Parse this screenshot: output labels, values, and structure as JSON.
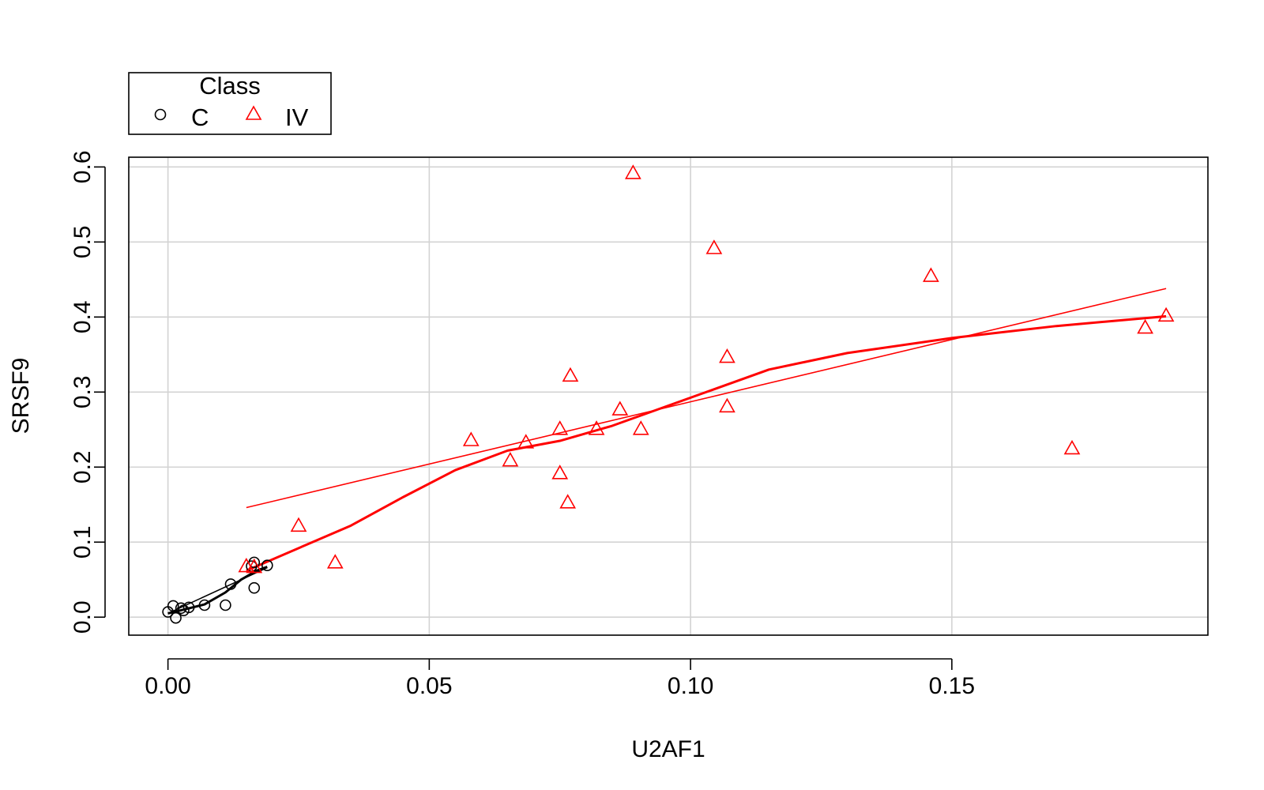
{
  "chart_data": {
    "type": "scatter",
    "title": "",
    "xlabel": "U2AF1",
    "ylabel": "SRSF9",
    "xlim": [
      -0.0075,
      0.199
    ],
    "ylim": [
      -0.024,
      0.613
    ],
    "xticks": [
      0.0,
      0.05,
      0.1,
      0.15
    ],
    "xtick_labels": [
      "0.00",
      "0.05",
      "0.10",
      "0.15"
    ],
    "yticks": [
      0.0,
      0.1,
      0.2,
      0.3,
      0.4,
      0.5,
      0.6
    ],
    "ytick_labels": [
      "0.0",
      "0.1",
      "0.2",
      "0.3",
      "0.4",
      "0.5",
      "0.6"
    ],
    "grid": true,
    "legend": {
      "title": "Class",
      "position": "top-left, above plot",
      "entries": [
        {
          "label": "C",
          "marker": "circle",
          "color": "#000000"
        },
        {
          "label": "IV",
          "marker": "triangle",
          "color": "#ff0000"
        }
      ]
    },
    "series": [
      {
        "name": "C",
        "marker": "circle",
        "color": "#000000",
        "points": [
          {
            "x": 0.0,
            "y": 0.007
          },
          {
            "x": 0.001,
            "y": 0.015
          },
          {
            "x": 0.0015,
            "y": -0.001
          },
          {
            "x": 0.0025,
            "y": 0.012
          },
          {
            "x": 0.003,
            "y": 0.009
          },
          {
            "x": 0.004,
            "y": 0.013
          },
          {
            "x": 0.007,
            "y": 0.016
          },
          {
            "x": 0.011,
            "y": 0.016
          },
          {
            "x": 0.012,
            "y": 0.044
          },
          {
            "x": 0.016,
            "y": 0.068
          },
          {
            "x": 0.0165,
            "y": 0.073
          },
          {
            "x": 0.0165,
            "y": 0.039
          },
          {
            "x": 0.019,
            "y": 0.069
          }
        ],
        "regression_line": [
          {
            "x": 0.0,
            "y": 0.005
          },
          {
            "x": 0.019,
            "y": 0.066
          }
        ],
        "smooth_line": [
          {
            "x": 0.0,
            "y": 0.005
          },
          {
            "x": 0.003,
            "y": 0.01
          },
          {
            "x": 0.007,
            "y": 0.017
          },
          {
            "x": 0.011,
            "y": 0.033
          },
          {
            "x": 0.014,
            "y": 0.05
          },
          {
            "x": 0.017,
            "y": 0.062
          },
          {
            "x": 0.019,
            "y": 0.067
          }
        ]
      },
      {
        "name": "IV",
        "marker": "triangle",
        "color": "#ff0000",
        "points": [
          {
            "x": 0.015,
            "y": 0.067
          },
          {
            "x": 0.0165,
            "y": 0.066
          },
          {
            "x": 0.025,
            "y": 0.121
          },
          {
            "x": 0.032,
            "y": 0.072
          },
          {
            "x": 0.058,
            "y": 0.235
          },
          {
            "x": 0.0655,
            "y": 0.208
          },
          {
            "x": 0.0685,
            "y": 0.232
          },
          {
            "x": 0.075,
            "y": 0.25
          },
          {
            "x": 0.075,
            "y": 0.191
          },
          {
            "x": 0.0765,
            "y": 0.152
          },
          {
            "x": 0.077,
            "y": 0.321
          },
          {
            "x": 0.082,
            "y": 0.25
          },
          {
            "x": 0.0865,
            "y": 0.276
          },
          {
            "x": 0.089,
            "y": 0.591
          },
          {
            "x": 0.0905,
            "y": 0.25
          },
          {
            "x": 0.1045,
            "y": 0.491
          },
          {
            "x": 0.107,
            "y": 0.346
          },
          {
            "x": 0.107,
            "y": 0.28
          },
          {
            "x": 0.146,
            "y": 0.454
          },
          {
            "x": 0.173,
            "y": 0.224
          },
          {
            "x": 0.187,
            "y": 0.385
          },
          {
            "x": 0.191,
            "y": 0.401
          }
        ],
        "regression_line": [
          {
            "x": 0.015,
            "y": 0.146
          },
          {
            "x": 0.191,
            "y": 0.438
          }
        ],
        "smooth_line": [
          {
            "x": 0.015,
            "y": 0.062
          },
          {
            "x": 0.025,
            "y": 0.092
          },
          {
            "x": 0.035,
            "y": 0.122
          },
          {
            "x": 0.045,
            "y": 0.16
          },
          {
            "x": 0.055,
            "y": 0.196
          },
          {
            "x": 0.065,
            "y": 0.222
          },
          {
            "x": 0.075,
            "y": 0.235
          },
          {
            "x": 0.085,
            "y": 0.255
          },
          {
            "x": 0.095,
            "y": 0.28
          },
          {
            "x": 0.105,
            "y": 0.305
          },
          {
            "x": 0.115,
            "y": 0.33
          },
          {
            "x": 0.13,
            "y": 0.352
          },
          {
            "x": 0.15,
            "y": 0.372
          },
          {
            "x": 0.17,
            "y": 0.388
          },
          {
            "x": 0.191,
            "y": 0.401
          }
        ]
      }
    ]
  }
}
